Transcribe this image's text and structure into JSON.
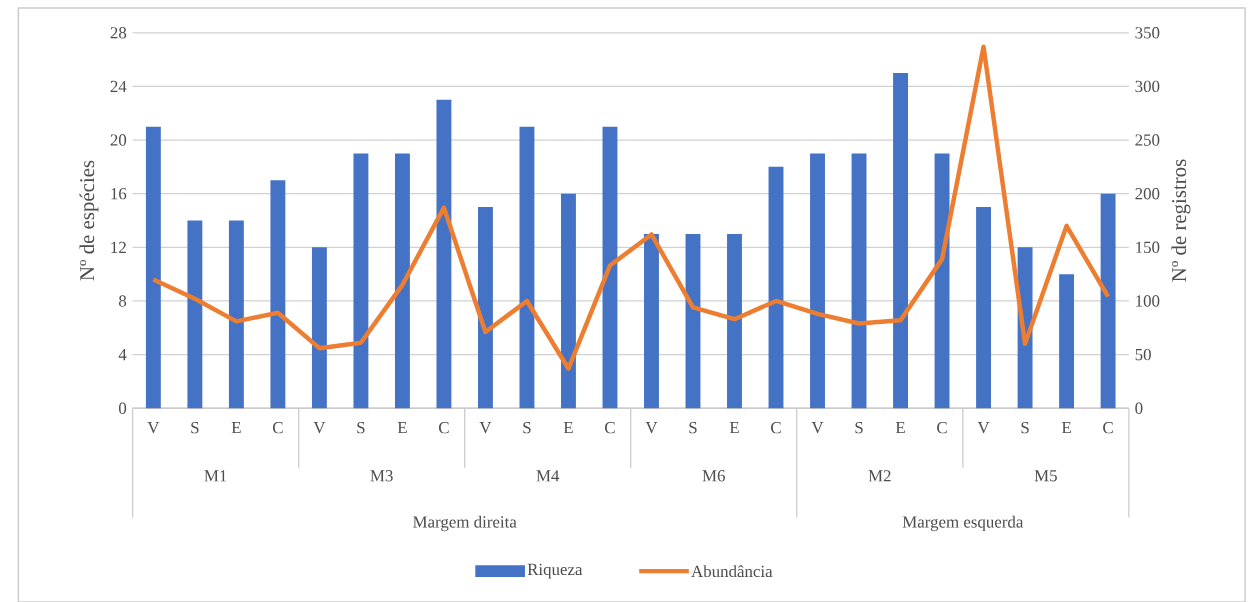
{
  "chart_data": {
    "type": "bar",
    "ylabel": "Nº de espécies",
    "y2label": "Nº de registros",
    "categories": [
      "V",
      "S",
      "E",
      "C",
      "V",
      "S",
      "E",
      "C",
      "V",
      "S",
      "E",
      "C",
      "V",
      "S",
      "E",
      "C",
      "V",
      "S",
      "E",
      "C",
      "V",
      "S",
      "E",
      "C"
    ],
    "series": [
      {
        "name": "Riqueza",
        "color": "#4472c4",
        "values": [
          21,
          14,
          14,
          17,
          12,
          19,
          19,
          23,
          15,
          21,
          16,
          21,
          13,
          13,
          13,
          18,
          19,
          19,
          25,
          19,
          15,
          12,
          10,
          16
        ]
      },
      {
        "name": "Abundância",
        "type": "line",
        "axis": "y2",
        "color": "#ed7d31",
        "values": [
          120,
          102,
          81,
          89,
          56,
          61,
          115,
          187,
          71,
          100,
          37,
          133,
          162,
          94,
          83,
          100,
          88,
          79,
          82,
          139,
          337,
          60,
          170,
          104
        ]
      }
    ],
    "ylim": [
      0,
      28
    ],
    "yticks": [
      0,
      4,
      8,
      12,
      16,
      20,
      24,
      28
    ],
    "y2lim": [
      0,
      350
    ],
    "y2ticks": [
      0,
      50,
      100,
      150,
      200,
      250,
      300,
      350
    ],
    "grid": "y",
    "legend": "bottom",
    "annotations": [
      "M1",
      "M3",
      "M4",
      "M6",
      "M2",
      "M5",
      "Margem direita",
      "Margem esquerda"
    ]
  }
}
